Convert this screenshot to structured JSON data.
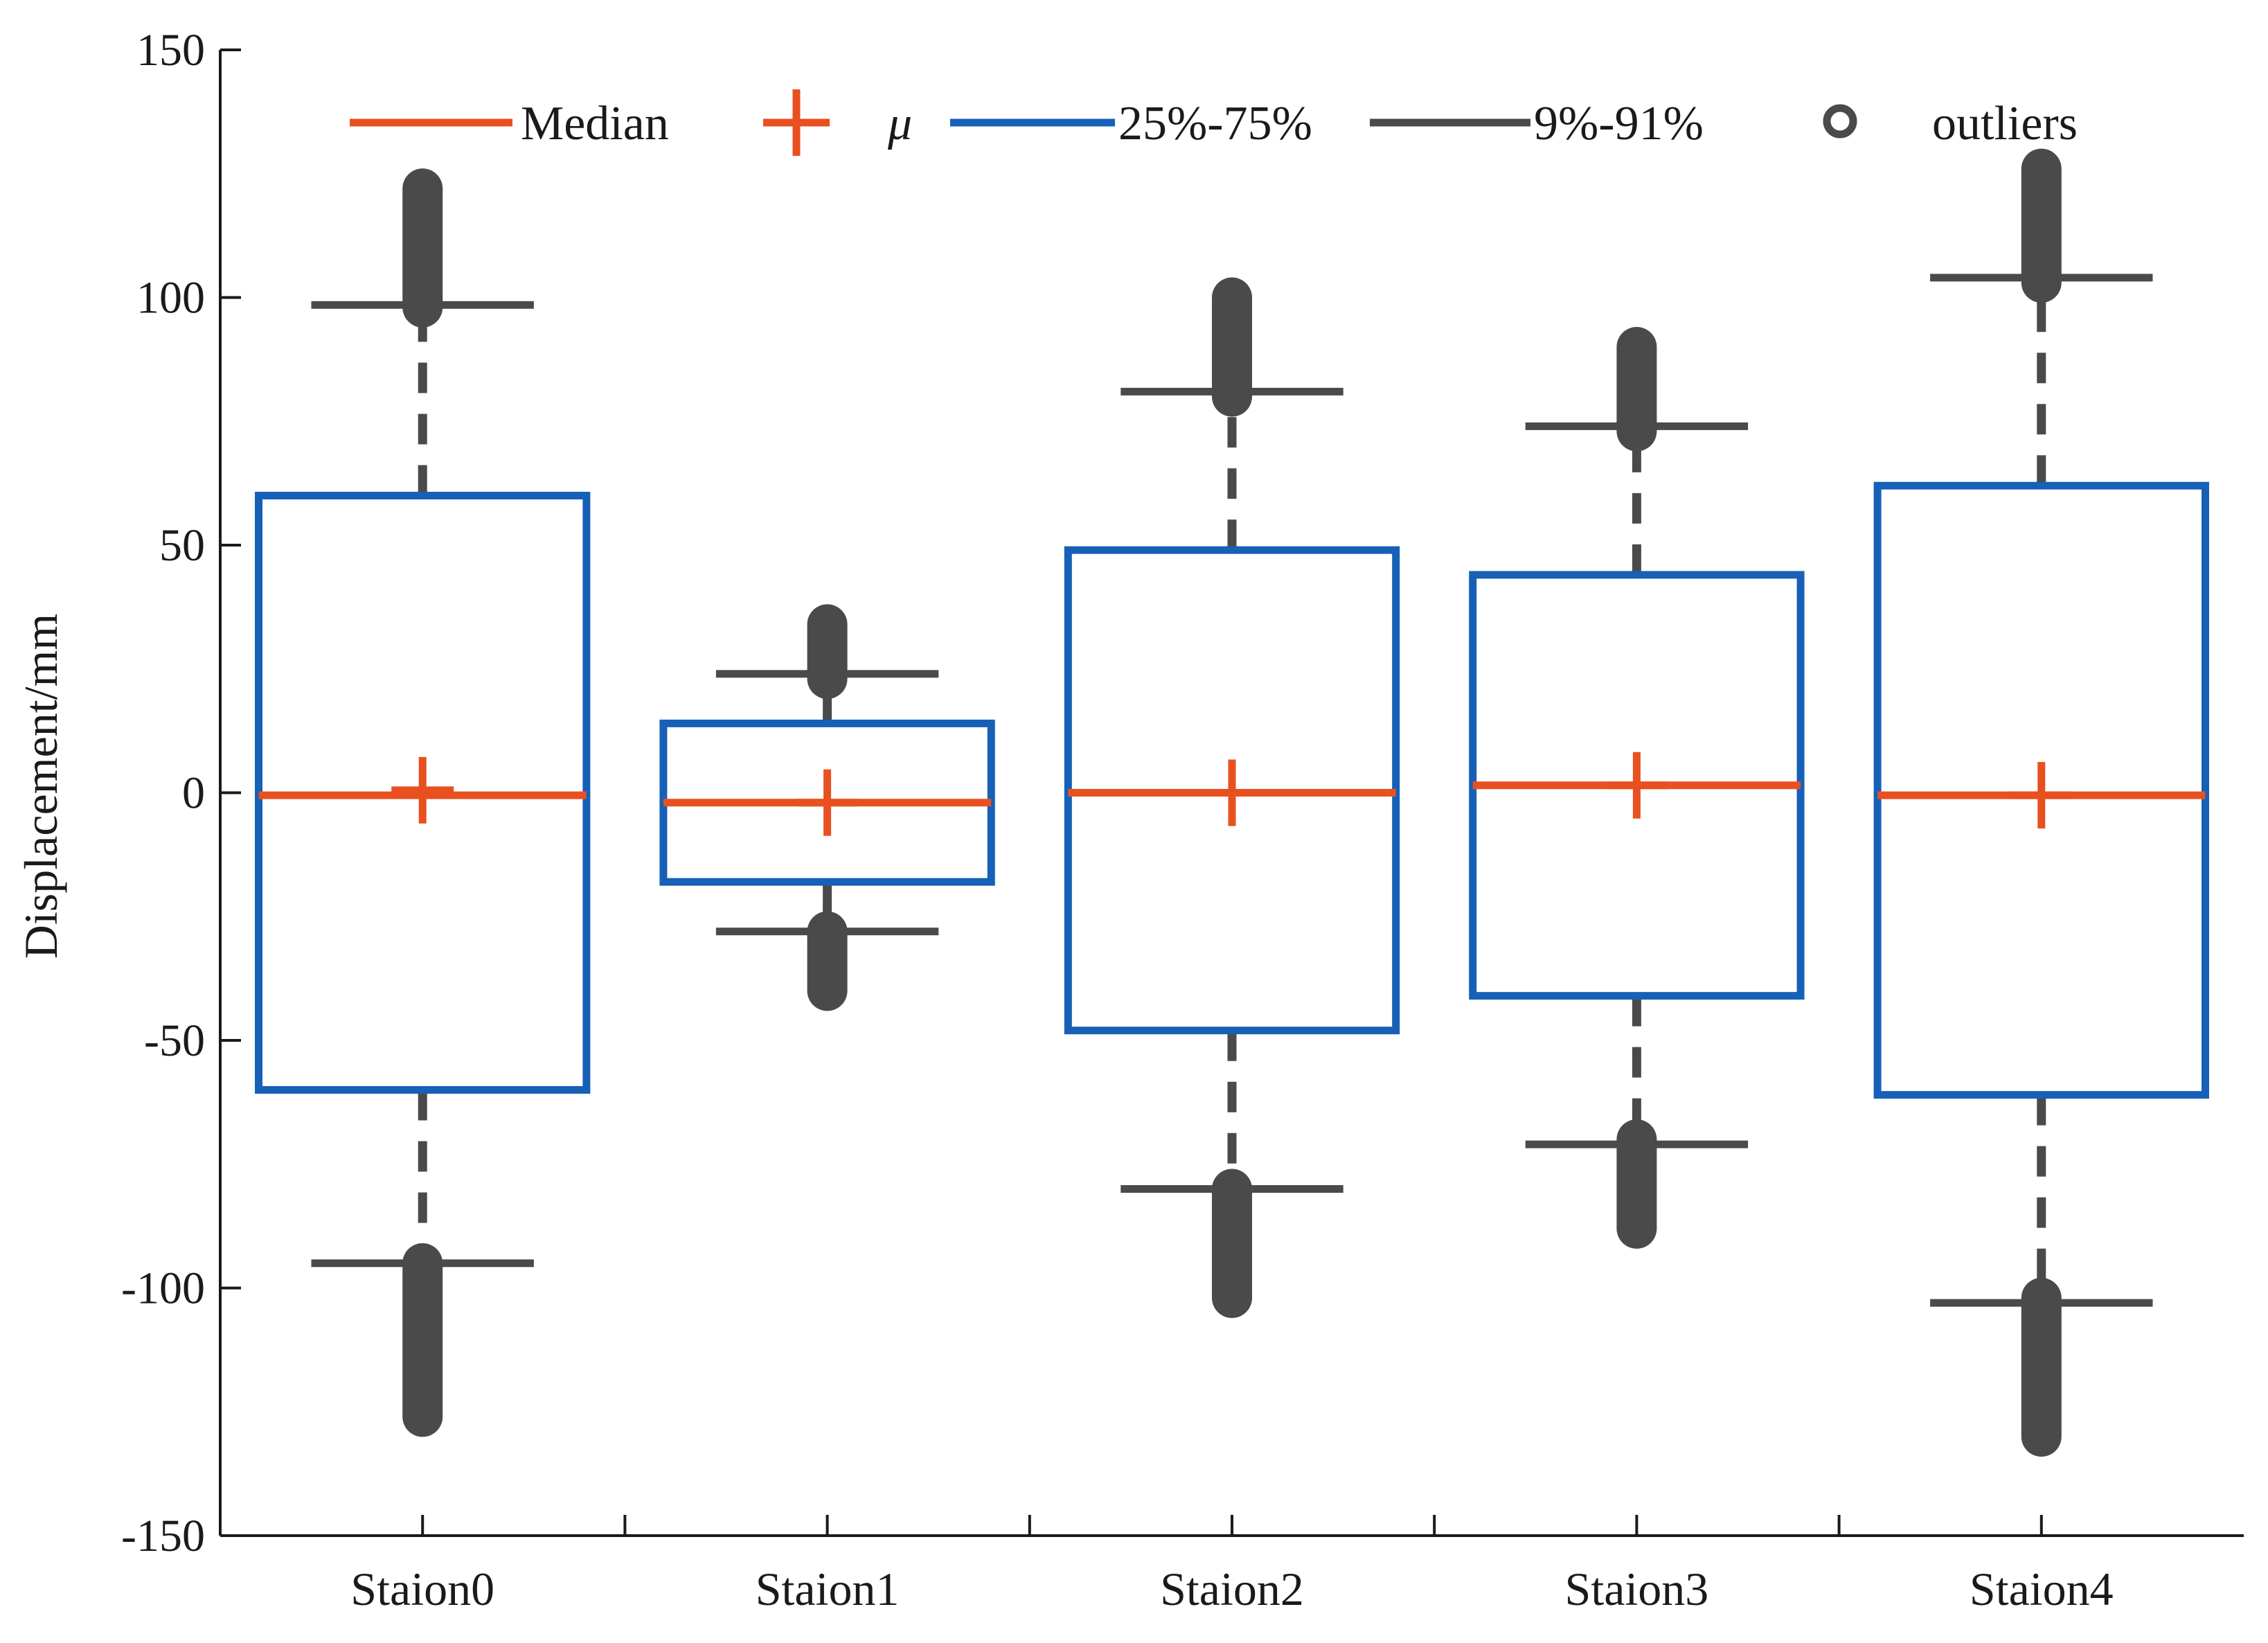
{
  "chart_data": {
    "type": "boxplot",
    "title": "",
    "xlabel": "",
    "ylabel": "Displacement/mm",
    "ylim": [
      -150,
      150
    ],
    "yticks": [
      -150,
      -100,
      -50,
      0,
      50,
      100,
      150
    ],
    "yticklabels": [
      "-150",
      "-100",
      "-50",
      "0",
      "50",
      "100",
      "150"
    ],
    "categories": [
      "Staion0",
      "Staion1",
      "Staion2",
      "Staion3",
      "Staion4"
    ],
    "grid": false,
    "legend_position": "top",
    "legend": [
      {
        "key": "median",
        "label": "Median"
      },
      {
        "key": "mean",
        "label": "μ"
      },
      {
        "key": "iqr",
        "label": "25%-75%"
      },
      {
        "key": "whisker",
        "label": "9%-91%"
      },
      {
        "key": "outliers",
        "label": "outliers"
      }
    ],
    "series": [
      {
        "name": "Staion0",
        "p9": -95,
        "q1": -60,
        "median": -0.5,
        "mean": 0.5,
        "q3": 60,
        "p91": 98.5,
        "outliers_low": [
          -95,
          -126
        ],
        "outliers_high": [
          98,
          122
        ]
      },
      {
        "name": "Staion1",
        "p9": -28,
        "q1": -18,
        "median": -2,
        "mean": -2,
        "q3": 14,
        "p91": 24,
        "outliers_low": [
          -28,
          -40
        ],
        "outliers_high": [
          23,
          34
        ]
      },
      {
        "name": "Staion2",
        "p9": -80,
        "q1": -48,
        "median": 0,
        "mean": 0,
        "q3": 49,
        "p91": 81,
        "outliers_low": [
          -80,
          -102
        ],
        "outliers_high": [
          80,
          100
        ]
      },
      {
        "name": "Staion3",
        "p9": -71,
        "q1": -41,
        "median": 1.5,
        "mean": 1.5,
        "q3": 44,
        "p91": 74,
        "outliers_low": [
          -70,
          -88
        ],
        "outliers_high": [
          73,
          90
        ]
      },
      {
        "name": "Staion4",
        "p9": -103,
        "q1": -61,
        "median": -0.5,
        "mean": -0.5,
        "q3": 62,
        "p91": 104,
        "outliers_low": [
          -102,
          -130
        ],
        "outliers_high": [
          103,
          126
        ]
      }
    ]
  },
  "colors": {
    "median": "#e8501f",
    "mean": "#e8501f",
    "box": "#1660b8",
    "whisker": "#4a4a4a",
    "outlier": "#4a4a4a",
    "axis": "#1a1a1a"
  }
}
